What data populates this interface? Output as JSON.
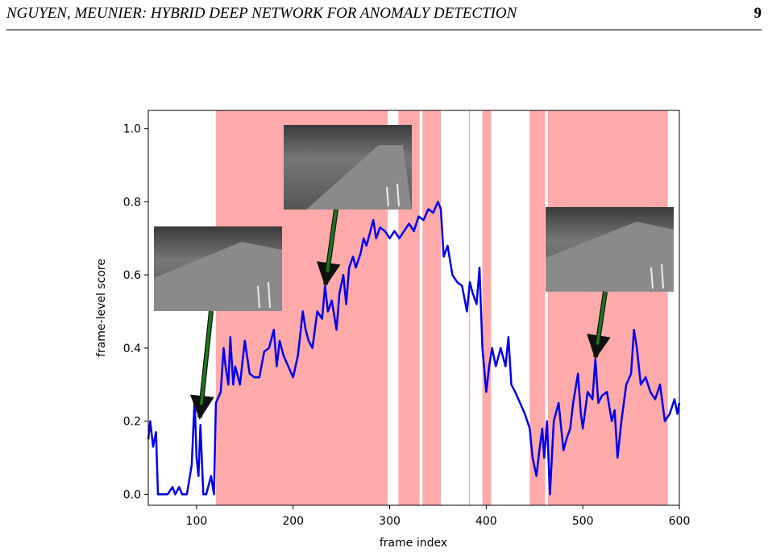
{
  "header": {
    "title": "NGUYEN, MEUNIER: HYBRID DEEP NETWORK FOR ANOMALY DETECTION",
    "page": "9"
  },
  "chart_data": {
    "type": "line",
    "xlabel": "frame index",
    "ylabel": "frame-level score",
    "xlim": [
      50,
      600
    ],
    "ylim": [
      -0.03,
      1.05
    ],
    "xticks": [
      100,
      200,
      300,
      400,
      500,
      600
    ],
    "yticks": [
      {
        "value": 0,
        "label": "0.0"
      },
      {
        "value": 0.2,
        "label": "0.2"
      },
      {
        "value": 0.4,
        "label": "0.4"
      },
      {
        "value": 0.6,
        "label": "0.6"
      },
      {
        "value": 0.8,
        "label": "0.8"
      },
      {
        "value": 1,
        "label": "1.0"
      }
    ],
    "color": "#0000ee",
    "span_color": "#ffaaaa",
    "spans": [
      [
        120,
        298
      ],
      [
        309,
        331
      ],
      [
        334,
        353
      ],
      [
        382,
        383
      ],
      [
        396,
        405
      ],
      [
        445,
        461
      ],
      [
        464,
        588
      ]
    ],
    "x": [
      50,
      52,
      55,
      58,
      60,
      65,
      70,
      75,
      78,
      82,
      85,
      90,
      95,
      98,
      100,
      102,
      104,
      107,
      110,
      115,
      118,
      120,
      125,
      128,
      130,
      133,
      135,
      138,
      140,
      145,
      150,
      155,
      160,
      165,
      170,
      175,
      180,
      183,
      186,
      190,
      195,
      200,
      205,
      210,
      213,
      216,
      220,
      225,
      230,
      233,
      236,
      240,
      245,
      248,
      252,
      255,
      258,
      262,
      265,
      270,
      273,
      276,
      280,
      283,
      286,
      290,
      295,
      300,
      305,
      310,
      315,
      320,
      325,
      330,
      335,
      340,
      345,
      350,
      353,
      356,
      360,
      365,
      370,
      375,
      380,
      383,
      386,
      390,
      393,
      396,
      400,
      403,
      406,
      410,
      415,
      420,
      423,
      426,
      430,
      435,
      440,
      445,
      448,
      452,
      455,
      458,
      460,
      463,
      466,
      470,
      475,
      480,
      483,
      487,
      490,
      495,
      498,
      500,
      505,
      510,
      513,
      516,
      520,
      525,
      530,
      533,
      536,
      540,
      545,
      550,
      553,
      556,
      560,
      565,
      570,
      575,
      580,
      585,
      590,
      595,
      598,
      600
    ],
    "values": [
      0.15,
      0.2,
      0.13,
      0.17,
      0.0,
      0.0,
      0.0,
      0.02,
      0.0,
      0.02,
      0.0,
      0.0,
      0.08,
      0.26,
      0.1,
      0.05,
      0.19,
      0.0,
      0.0,
      0.05,
      0.0,
      0.25,
      0.28,
      0.4,
      0.35,
      0.3,
      0.43,
      0.3,
      0.35,
      0.3,
      0.42,
      0.33,
      0.32,
      0.32,
      0.39,
      0.4,
      0.45,
      0.35,
      0.42,
      0.38,
      0.35,
      0.32,
      0.38,
      0.5,
      0.45,
      0.42,
      0.4,
      0.5,
      0.48,
      0.57,
      0.5,
      0.53,
      0.45,
      0.55,
      0.6,
      0.52,
      0.62,
      0.65,
      0.62,
      0.66,
      0.7,
      0.68,
      0.72,
      0.75,
      0.7,
      0.73,
      0.72,
      0.7,
      0.72,
      0.7,
      0.72,
      0.74,
      0.72,
      0.76,
      0.75,
      0.78,
      0.77,
      0.8,
      0.78,
      0.65,
      0.68,
      0.6,
      0.58,
      0.57,
      0.5,
      0.58,
      0.55,
      0.52,
      0.62,
      0.4,
      0.28,
      0.35,
      0.4,
      0.35,
      0.4,
      0.35,
      0.43,
      0.3,
      0.28,
      0.25,
      0.22,
      0.18,
      0.1,
      0.05,
      0.12,
      0.18,
      0.1,
      0.2,
      0.0,
      0.2,
      0.25,
      0.12,
      0.15,
      0.18,
      0.25,
      0.33,
      0.22,
      0.18,
      0.28,
      0.26,
      0.37,
      0.25,
      0.27,
      0.28,
      0.2,
      0.23,
      0.1,
      0.2,
      0.3,
      0.33,
      0.45,
      0.4,
      0.3,
      0.32,
      0.28,
      0.26,
      0.3,
      0.2,
      0.22,
      0.26,
      0.22,
      0.25
    ]
  }
}
